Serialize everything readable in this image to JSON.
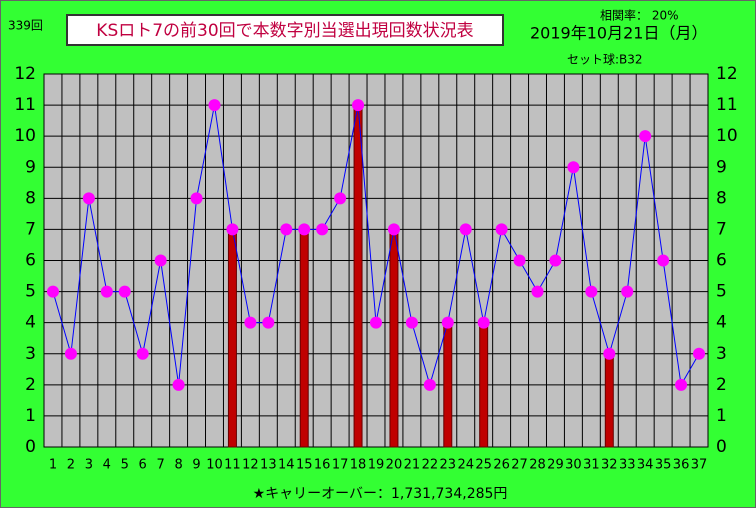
{
  "chart_data": {
    "type": "line_bar",
    "draw_count": "339回",
    "title": "KSロト7の前30回で本数字別当選出現回数状況表",
    "correlation": "相関率： 20%",
    "date": "2019年10月21日（月）",
    "set_ball": "セット球:B32",
    "carryover": "★キャリーオーバー：1,731,734,285円",
    "categories": [
      "1",
      "2",
      "3",
      "4",
      "5",
      "6",
      "7",
      "8",
      "9",
      "10",
      "11",
      "12",
      "13",
      "14",
      "15",
      "16",
      "17",
      "18",
      "19",
      "20",
      "21",
      "22",
      "23",
      "24",
      "25",
      "26",
      "27",
      "28",
      "29",
      "30",
      "31",
      "32",
      "33",
      "34",
      "35",
      "36",
      "37"
    ],
    "series": [
      {
        "kind": "line",
        "color": "#0000ff",
        "marker_color": "#ff00ff",
        "values": [
          5,
          3,
          8,
          5,
          5,
          3,
          6,
          2,
          8,
          11,
          7,
          4,
          4,
          7,
          7,
          7,
          8,
          11,
          4,
          7,
          4,
          2,
          4,
          7,
          4,
          7,
          6,
          5,
          6,
          9,
          5,
          3,
          5,
          10,
          6,
          2,
          3
        ]
      },
      {
        "kind": "bar",
        "color": "#c00000",
        "values": [
          null,
          null,
          null,
          null,
          null,
          null,
          null,
          null,
          null,
          null,
          7,
          null,
          null,
          null,
          7,
          null,
          null,
          11,
          null,
          7,
          null,
          null,
          4,
          null,
          4,
          null,
          null,
          null,
          null,
          null,
          null,
          3,
          null,
          null,
          null,
          null,
          null
        ]
      }
    ],
    "ylim": [
      0,
      12
    ],
    "yticks": [
      0,
      1,
      2,
      3,
      4,
      5,
      6,
      7,
      8,
      9,
      10,
      11,
      12
    ],
    "grid": true
  }
}
